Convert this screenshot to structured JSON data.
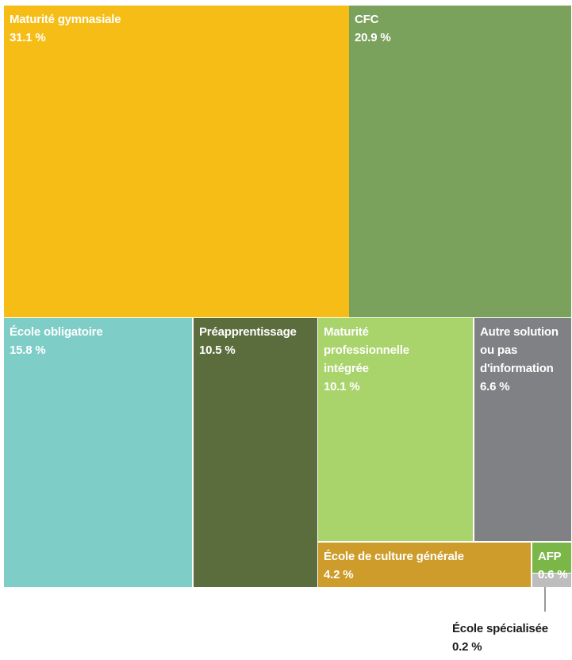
{
  "chart_data": {
    "type": "treemap",
    "title": "",
    "unit": "%",
    "items": [
      {
        "name": "Maturité gymnasiale",
        "label_lines": [
          "Maturité gymnasiale"
        ],
        "value": 31.1,
        "value_label": "31.1 %",
        "color": "#F6BD16"
      },
      {
        "name": "CFC",
        "label_lines": [
          "CFC"
        ],
        "value": 20.9,
        "value_label": "20.9 %",
        "color": "#7AA25D"
      },
      {
        "name": "École obligatoire",
        "label_lines": [
          "École obligatoire"
        ],
        "value": 15.8,
        "value_label": "15.8 %",
        "color": "#7ECDC7"
      },
      {
        "name": "Préapprentissage",
        "label_lines": [
          "Préapprentissage"
        ],
        "value": 10.5,
        "value_label": "10.5 %",
        "color": "#5C6D3D"
      },
      {
        "name": "Maturité professionnelle intégrée",
        "label_lines": [
          "Maturité",
          "professionnelle",
          "intégrée"
        ],
        "value": 10.1,
        "value_label": "10.1 %",
        "color": "#A9D36B"
      },
      {
        "name": "Autre solution ou pas d'information",
        "label_lines": [
          "Autre solution",
          "ou pas",
          "d'information"
        ],
        "value": 6.6,
        "value_label": "6.6 %",
        "color": "#808184"
      },
      {
        "name": "École de culture générale",
        "label_lines": [
          "École de culture générale"
        ],
        "value": 4.2,
        "value_label": "4.2 %",
        "color": "#CE9C2A"
      },
      {
        "name": "AFP",
        "label_lines": [
          "AFP"
        ],
        "value": 0.6,
        "value_label": "0.6 %",
        "color": "#7AB648"
      },
      {
        "name": "École spécialisée",
        "label_lines": [
          "École spécialisée"
        ],
        "value": 0.2,
        "value_label": "0.2 %",
        "color": "#BDBDBD"
      }
    ]
  }
}
